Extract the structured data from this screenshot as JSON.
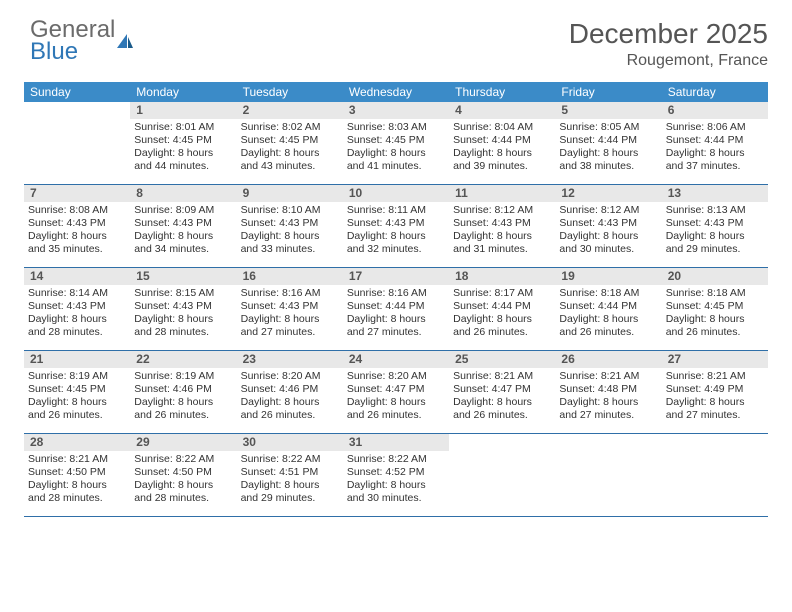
{
  "logo": {
    "line1": "General",
    "line2": "Blue",
    "line1_color": "#6b6b6b",
    "line2_color": "#2f77b6"
  },
  "title": "December 2025",
  "location": "Rougemont, France",
  "title_color": "#555555",
  "header_bg": "#3b8bc8",
  "header_text_color": "#ffffff",
  "daynum_bg": "#e8e8e8",
  "row_border": "#2f6fa8",
  "day_headers": [
    "Sunday",
    "Monday",
    "Tuesday",
    "Wednesday",
    "Thursday",
    "Friday",
    "Saturday"
  ],
  "first_day_offset": 1,
  "days": [
    {
      "n": 1,
      "sunrise": "8:01 AM",
      "sunset": "4:45 PM",
      "daylight": "8 hours and 44 minutes."
    },
    {
      "n": 2,
      "sunrise": "8:02 AM",
      "sunset": "4:45 PM",
      "daylight": "8 hours and 43 minutes."
    },
    {
      "n": 3,
      "sunrise": "8:03 AM",
      "sunset": "4:45 PM",
      "daylight": "8 hours and 41 minutes."
    },
    {
      "n": 4,
      "sunrise": "8:04 AM",
      "sunset": "4:44 PM",
      "daylight": "8 hours and 39 minutes."
    },
    {
      "n": 5,
      "sunrise": "8:05 AM",
      "sunset": "4:44 PM",
      "daylight": "8 hours and 38 minutes."
    },
    {
      "n": 6,
      "sunrise": "8:06 AM",
      "sunset": "4:44 PM",
      "daylight": "8 hours and 37 minutes."
    },
    {
      "n": 7,
      "sunrise": "8:08 AM",
      "sunset": "4:43 PM",
      "daylight": "8 hours and 35 minutes."
    },
    {
      "n": 8,
      "sunrise": "8:09 AM",
      "sunset": "4:43 PM",
      "daylight": "8 hours and 34 minutes."
    },
    {
      "n": 9,
      "sunrise": "8:10 AM",
      "sunset": "4:43 PM",
      "daylight": "8 hours and 33 minutes."
    },
    {
      "n": 10,
      "sunrise": "8:11 AM",
      "sunset": "4:43 PM",
      "daylight": "8 hours and 32 minutes."
    },
    {
      "n": 11,
      "sunrise": "8:12 AM",
      "sunset": "4:43 PM",
      "daylight": "8 hours and 31 minutes."
    },
    {
      "n": 12,
      "sunrise": "8:12 AM",
      "sunset": "4:43 PM",
      "daylight": "8 hours and 30 minutes."
    },
    {
      "n": 13,
      "sunrise": "8:13 AM",
      "sunset": "4:43 PM",
      "daylight": "8 hours and 29 minutes."
    },
    {
      "n": 14,
      "sunrise": "8:14 AM",
      "sunset": "4:43 PM",
      "daylight": "8 hours and 28 minutes."
    },
    {
      "n": 15,
      "sunrise": "8:15 AM",
      "sunset": "4:43 PM",
      "daylight": "8 hours and 28 minutes."
    },
    {
      "n": 16,
      "sunrise": "8:16 AM",
      "sunset": "4:43 PM",
      "daylight": "8 hours and 27 minutes."
    },
    {
      "n": 17,
      "sunrise": "8:16 AM",
      "sunset": "4:44 PM",
      "daylight": "8 hours and 27 minutes."
    },
    {
      "n": 18,
      "sunrise": "8:17 AM",
      "sunset": "4:44 PM",
      "daylight": "8 hours and 26 minutes."
    },
    {
      "n": 19,
      "sunrise": "8:18 AM",
      "sunset": "4:44 PM",
      "daylight": "8 hours and 26 minutes."
    },
    {
      "n": 20,
      "sunrise": "8:18 AM",
      "sunset": "4:45 PM",
      "daylight": "8 hours and 26 minutes."
    },
    {
      "n": 21,
      "sunrise": "8:19 AM",
      "sunset": "4:45 PM",
      "daylight": "8 hours and 26 minutes."
    },
    {
      "n": 22,
      "sunrise": "8:19 AM",
      "sunset": "4:46 PM",
      "daylight": "8 hours and 26 minutes."
    },
    {
      "n": 23,
      "sunrise": "8:20 AM",
      "sunset": "4:46 PM",
      "daylight": "8 hours and 26 minutes."
    },
    {
      "n": 24,
      "sunrise": "8:20 AM",
      "sunset": "4:47 PM",
      "daylight": "8 hours and 26 minutes."
    },
    {
      "n": 25,
      "sunrise": "8:21 AM",
      "sunset": "4:47 PM",
      "daylight": "8 hours and 26 minutes."
    },
    {
      "n": 26,
      "sunrise": "8:21 AM",
      "sunset": "4:48 PM",
      "daylight": "8 hours and 27 minutes."
    },
    {
      "n": 27,
      "sunrise": "8:21 AM",
      "sunset": "4:49 PM",
      "daylight": "8 hours and 27 minutes."
    },
    {
      "n": 28,
      "sunrise": "8:21 AM",
      "sunset": "4:50 PM",
      "daylight": "8 hours and 28 minutes."
    },
    {
      "n": 29,
      "sunrise": "8:22 AM",
      "sunset": "4:50 PM",
      "daylight": "8 hours and 28 minutes."
    },
    {
      "n": 30,
      "sunrise": "8:22 AM",
      "sunset": "4:51 PM",
      "daylight": "8 hours and 29 minutes."
    },
    {
      "n": 31,
      "sunrise": "8:22 AM",
      "sunset": "4:52 PM",
      "daylight": "8 hours and 30 minutes."
    }
  ],
  "labels": {
    "sunrise": "Sunrise:",
    "sunset": "Sunset:",
    "daylight": "Daylight:"
  }
}
